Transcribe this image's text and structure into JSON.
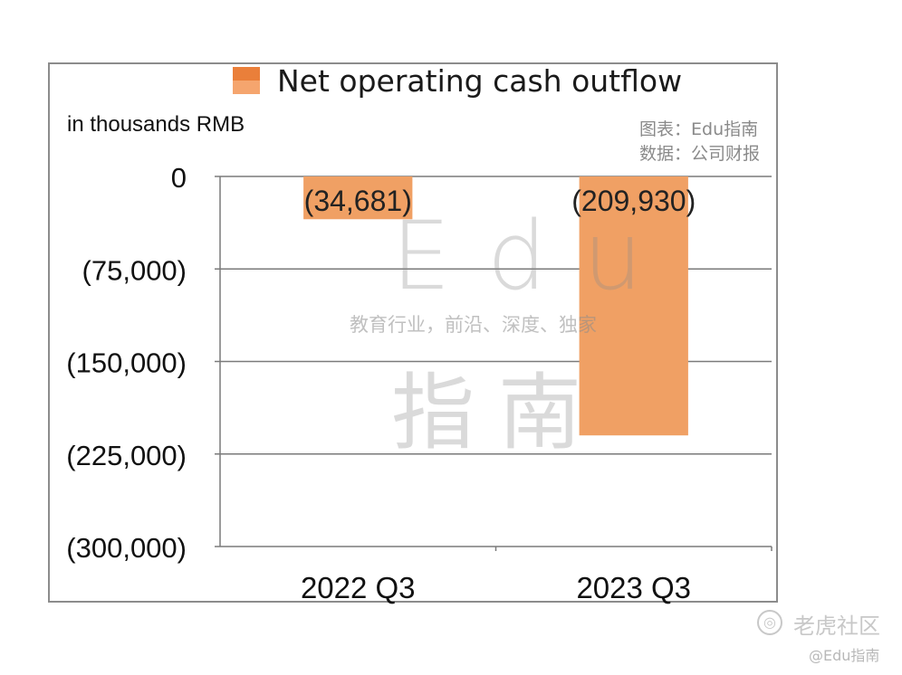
{
  "legend": {
    "label": "Net operating cash outflow",
    "swatch_color": "#f0a064"
  },
  "unit_label": "in thousands RMB",
  "source": {
    "line1": "图表：Edu指南",
    "line2": "数据：公司财报"
  },
  "watermark": {
    "main": "Edu",
    "tagline": "教育行业，前沿、深度、独家",
    "cn": "指南"
  },
  "footer": {
    "brand": "老虎社区",
    "handle": "@Edu指南"
  },
  "chart_data": {
    "type": "bar",
    "categories": [
      "2022 Q3",
      "2023 Q3"
    ],
    "values": [
      -34681,
      -209930
    ],
    "data_labels": [
      "(34,681)",
      "(209,930)"
    ],
    "series": [
      {
        "name": "Net operating cash outflow",
        "values": [
          -34681,
          -209930
        ]
      }
    ],
    "ylim": [
      -300000,
      0
    ],
    "yticks": [
      0,
      -75000,
      -150000,
      -225000,
      -300000
    ],
    "ytick_labels": [
      "0",
      "(75,000)",
      "(150,000)",
      "(225,000)",
      "(300,000)"
    ],
    "xlabel": "",
    "ylabel": "in thousands RMB",
    "grid": true,
    "bar_color": "#f0a064",
    "legend_position": "top"
  }
}
